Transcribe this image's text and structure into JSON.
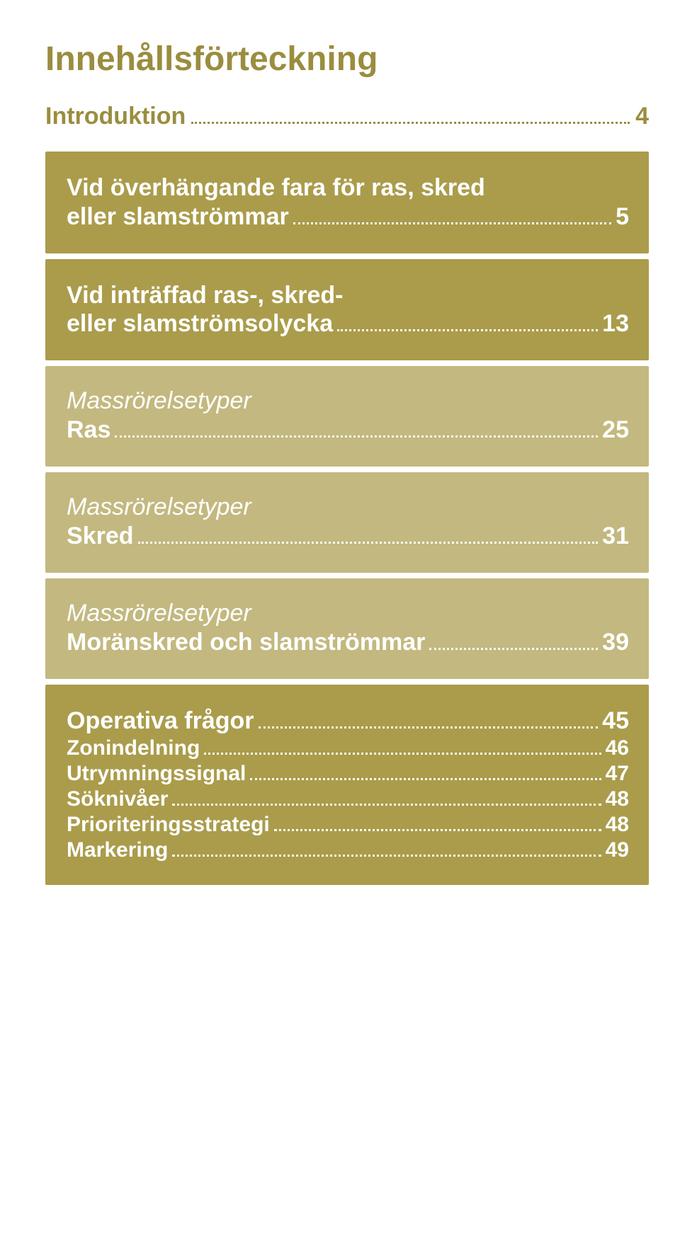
{
  "title": "Innehållsförteckning",
  "intro": {
    "label": "Introduktion",
    "page": "4"
  },
  "sections": [
    {
      "tone": "dark",
      "rows": [
        {
          "label_line1": "Vid överhängande fara för ras, skred",
          "label_line2": "eller slamströmmar",
          "page": "5"
        }
      ]
    },
    {
      "tone": "dark",
      "rows": [
        {
          "label_line1": "Vid inträffad ras-, skred-",
          "label_line2": "eller slamströmsolycka",
          "page": "13"
        }
      ]
    },
    {
      "tone": "light",
      "italic": "Massrörelsetyper",
      "rows": [
        {
          "label": "Ras",
          "page": "25"
        }
      ]
    },
    {
      "tone": "light",
      "italic": "Massrörelsetyper",
      "rows": [
        {
          "label": "Skred",
          "page": "31"
        }
      ]
    },
    {
      "tone": "light",
      "italic": "Massrörelsetyper",
      "rows": [
        {
          "label": "Moränskred och slamströmmar",
          "page": "39"
        }
      ]
    },
    {
      "tone": "dark",
      "multi": true,
      "rows": [
        {
          "label": "Operativa frågor",
          "page": "45",
          "big": true
        },
        {
          "label": "Zonindelning",
          "page": "46"
        },
        {
          "label": "Utrymningssignal",
          "page": "47"
        },
        {
          "label": "Söknivåer",
          "page": "48"
        },
        {
          "label": "Prioriteringsstrategi",
          "page": "48"
        },
        {
          "label": "Markering",
          "page": "49"
        }
      ]
    }
  ],
  "colors": {
    "accent": "#9a8d3f",
    "block_dark": "#aa9c4b",
    "block_light": "#c3b87f",
    "text_on_block": "#ffffff",
    "background": "#ffffff"
  }
}
